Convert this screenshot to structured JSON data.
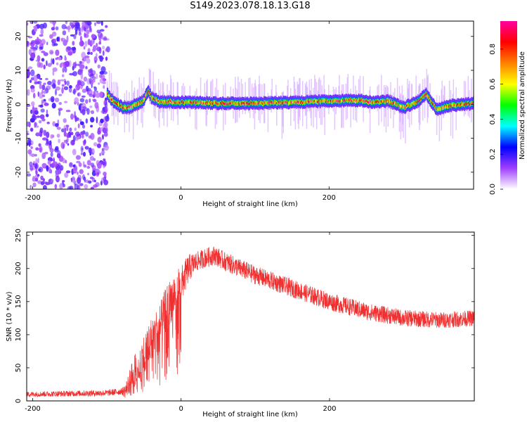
{
  "figure_title": "S149.2023.078.18.13.G18",
  "chart_data": [
    {
      "type": "heatmap",
      "xlabel": "Height of straight line (km)",
      "ylabel": "Frequency (Hz)",
      "xlim": [
        -208,
        395
      ],
      "ylim": [
        -25,
        24.5
      ],
      "xticks": [
        "-200",
        "0",
        "200"
      ],
      "yticks": [
        "20",
        "10",
        "0",
        "-10",
        "-20"
      ],
      "noise_region_x": [
        -208,
        -98
      ],
      "ridge": [
        {
          "x": -100,
          "y": 3.0
        },
        {
          "x": -90,
          "y": 0.5
        },
        {
          "x": -80,
          "y": -0.8
        },
        {
          "x": -70,
          "y": -1.0
        },
        {
          "x": -60,
          "y": 0.0
        },
        {
          "x": -50,
          "y": 1.2
        },
        {
          "x": -45,
          "y": 4.0
        },
        {
          "x": -40,
          "y": 2.0
        },
        {
          "x": -30,
          "y": 0.8
        },
        {
          "x": 0,
          "y": 0.6
        },
        {
          "x": 50,
          "y": 0.3
        },
        {
          "x": 100,
          "y": 0.3
        },
        {
          "x": 150,
          "y": 0.6
        },
        {
          "x": 200,
          "y": 1.0
        },
        {
          "x": 240,
          "y": 1.2
        },
        {
          "x": 260,
          "y": 0.5
        },
        {
          "x": 280,
          "y": 1.0
        },
        {
          "x": 300,
          "y": -1.0
        },
        {
          "x": 320,
          "y": 1.0
        },
        {
          "x": 330,
          "y": 3.0
        },
        {
          "x": 345,
          "y": -1.5
        },
        {
          "x": 360,
          "y": -0.5
        },
        {
          "x": 380,
          "y": 0.0
        },
        {
          "x": 395,
          "y": 0.3
        }
      ],
      "colorbar": {
        "label": "Normalized spectral amplitude",
        "ticks": [
          "0.0",
          "0.2",
          "0.4",
          "0.6",
          "0.8"
        ],
        "range": [
          0,
          0.96
        ],
        "colors": [
          "#ffffff",
          "#a040ff",
          "#0000ff",
          "#00ffff",
          "#00ff00",
          "#ffff00",
          "#ff8000",
          "#ff0000",
          "#ff00a0"
        ]
      }
    },
    {
      "type": "line",
      "xlabel": "Height of straight line (km)",
      "ylabel": "SNR (10 * v/v)",
      "xlim": [
        -208,
        395
      ],
      "ylim": [
        0,
        255
      ],
      "xticks": [
        "-200",
        "0",
        "200"
      ],
      "yticks": [
        "250",
        "200",
        "150",
        "100",
        "50",
        "0"
      ],
      "color": "#f03030",
      "envelope": [
        {
          "x": -208,
          "y": 10
        },
        {
          "x": -100,
          "y": 12
        },
        {
          "x": -75,
          "y": 15
        },
        {
          "x": -65,
          "y": 40
        },
        {
          "x": -50,
          "y": 70
        },
        {
          "x": -40,
          "y": 95
        },
        {
          "x": -30,
          "y": 110
        },
        {
          "x": -20,
          "y": 140
        },
        {
          "x": -10,
          "y": 160
        },
        {
          "x": 0,
          "y": 175
        },
        {
          "x": 10,
          "y": 200
        },
        {
          "x": 20,
          "y": 210
        },
        {
          "x": 30,
          "y": 215
        },
        {
          "x": 45,
          "y": 220
        },
        {
          "x": 60,
          "y": 210
        },
        {
          "x": 80,
          "y": 200
        },
        {
          "x": 100,
          "y": 190
        },
        {
          "x": 150,
          "y": 170
        },
        {
          "x": 200,
          "y": 150
        },
        {
          "x": 250,
          "y": 135
        },
        {
          "x": 300,
          "y": 125
        },
        {
          "x": 350,
          "y": 122
        },
        {
          "x": 395,
          "y": 125
        }
      ],
      "noise_amplitude": [
        {
          "x": -208,
          "y": 4
        },
        {
          "x": -80,
          "y": 5
        },
        {
          "x": -60,
          "y": 30
        },
        {
          "x": -10,
          "y": 35
        },
        {
          "x": 20,
          "y": 15
        },
        {
          "x": 100,
          "y": 14
        },
        {
          "x": 395,
          "y": 12
        }
      ]
    }
  ]
}
